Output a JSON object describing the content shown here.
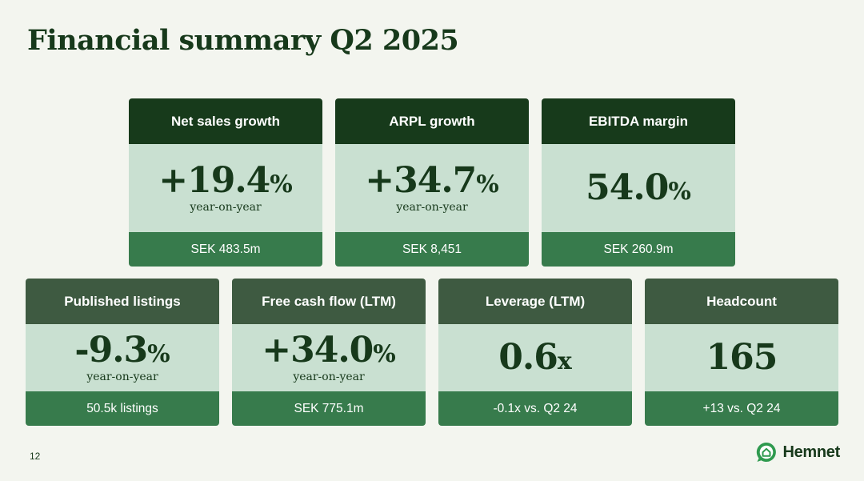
{
  "slide": {
    "title": "Financial summary Q2 2025",
    "page_number": "12"
  },
  "top_cards": [
    {
      "label": "Net sales growth",
      "value": "+19.4",
      "unit": "%",
      "sub": "year-on-year",
      "footer": "SEK 483.5m"
    },
    {
      "label": "ARPL growth",
      "value": "+34.7",
      "unit": "%",
      "sub": "year-on-year",
      "footer": "SEK 8,451"
    },
    {
      "label": "EBITDA margin",
      "value": "54.0",
      "unit": "%",
      "sub": "",
      "footer": "SEK 260.9m"
    }
  ],
  "bottom_cards": [
    {
      "label": "Published listings",
      "value": "-9.3",
      "unit": "%",
      "sub": "year-on-year",
      "footer": "50.5k listings"
    },
    {
      "label": "Free cash flow (LTM)",
      "value": "+34.0",
      "unit": "%",
      "sub": "year-on-year",
      "footer": "SEK 775.1m"
    },
    {
      "label": "Leverage (LTM)",
      "value": "0.6",
      "unit": "x",
      "sub": "",
      "footer": "-0.1x vs. Q2 24"
    },
    {
      "label": "Headcount",
      "value": "165",
      "unit": "",
      "sub": "",
      "footer": "+13 vs. Q2 24"
    }
  ],
  "brand": {
    "name": "Hemnet",
    "logo_icon": "house-in-speech-bubble-icon",
    "color_logo": "#2f9a4f"
  },
  "colors": {
    "background": "#f3f5ef",
    "header_dark": "#173a1b",
    "header_mid": "#3e5a41",
    "card_body": "#c9e0d1",
    "card_footer": "#377b4c",
    "text_dark": "#17391b"
  }
}
